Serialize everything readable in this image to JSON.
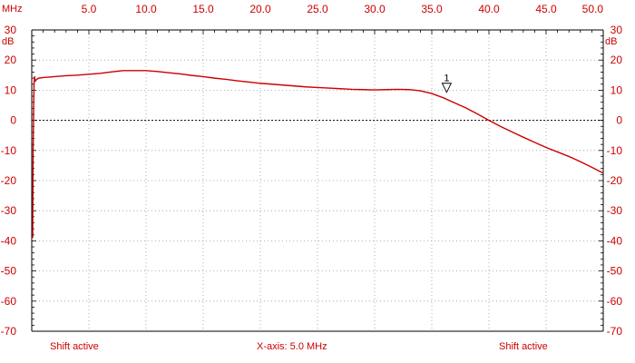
{
  "chart_data": {
    "type": "line",
    "title": "",
    "xlabel": "MHz",
    "ylabel": "dB",
    "xlim": [
      0,
      50
    ],
    "ylim": [
      -70,
      30
    ],
    "x_ticks": [
      5,
      10,
      15,
      20,
      25,
      30,
      35,
      40,
      45,
      50
    ],
    "x_tick_labels": [
      "5.0",
      "10.0",
      "15.0",
      "20.0",
      "25.0",
      "30.0",
      "35.0",
      "40.0",
      "45.0",
      "50.0"
    ],
    "y_ticks": [
      30,
      20,
      10,
      0,
      -10,
      -20,
      -30,
      -40,
      -50,
      -60,
      -70
    ],
    "y_tick_labels": [
      "30",
      "20",
      "10",
      "0",
      "-10",
      "-20",
      "-30",
      "-40",
      "-50",
      "-60",
      "-70"
    ],
    "grid": true,
    "reference_line": {
      "y": 0,
      "style": "dotted"
    },
    "series": [
      {
        "name": "Response",
        "color": "#cc0000",
        "x": [
          0.08,
          0.12,
          0.17,
          0.2,
          0.25,
          0.3,
          0.4,
          0.6,
          1,
          2,
          3,
          4,
          5,
          6,
          7,
          8,
          9,
          10,
          11,
          12,
          13,
          14,
          15,
          16,
          17,
          18,
          19,
          20,
          21,
          22,
          23,
          24,
          25,
          26,
          27,
          28,
          29,
          30,
          31,
          32,
          33,
          34,
          35,
          36,
          37,
          38,
          39,
          40,
          41,
          42,
          43,
          44,
          45,
          46,
          47,
          48,
          49,
          50
        ],
        "y": [
          -39,
          -10,
          5,
          12,
          14.5,
          13,
          13.5,
          14,
          14.2,
          14.5,
          14.8,
          15,
          15.3,
          15.6,
          16.1,
          16.5,
          16.5,
          16.5,
          16.2,
          15.8,
          15.4,
          14.9,
          14.5,
          14,
          13.6,
          13.1,
          12.7,
          12.3,
          12,
          11.7,
          11.4,
          11.1,
          10.9,
          10.7,
          10.5,
          10.3,
          10.2,
          10.1,
          10.2,
          10.3,
          10.2,
          9.8,
          8.9,
          7.5,
          5.8,
          4.1,
          2.1,
          0,
          -2,
          -3.8,
          -5.6,
          -7.3,
          -9,
          -10.5,
          -12,
          -13.7,
          -15.6,
          -17.5
        ]
      }
    ],
    "markers": [
      {
        "label": "1",
        "x": 36.3,
        "y": 10.5
      }
    ],
    "annotations": {
      "left": "Shift active",
      "center": "X-axis: 5.0 MHz",
      "right": "Shift active"
    }
  }
}
